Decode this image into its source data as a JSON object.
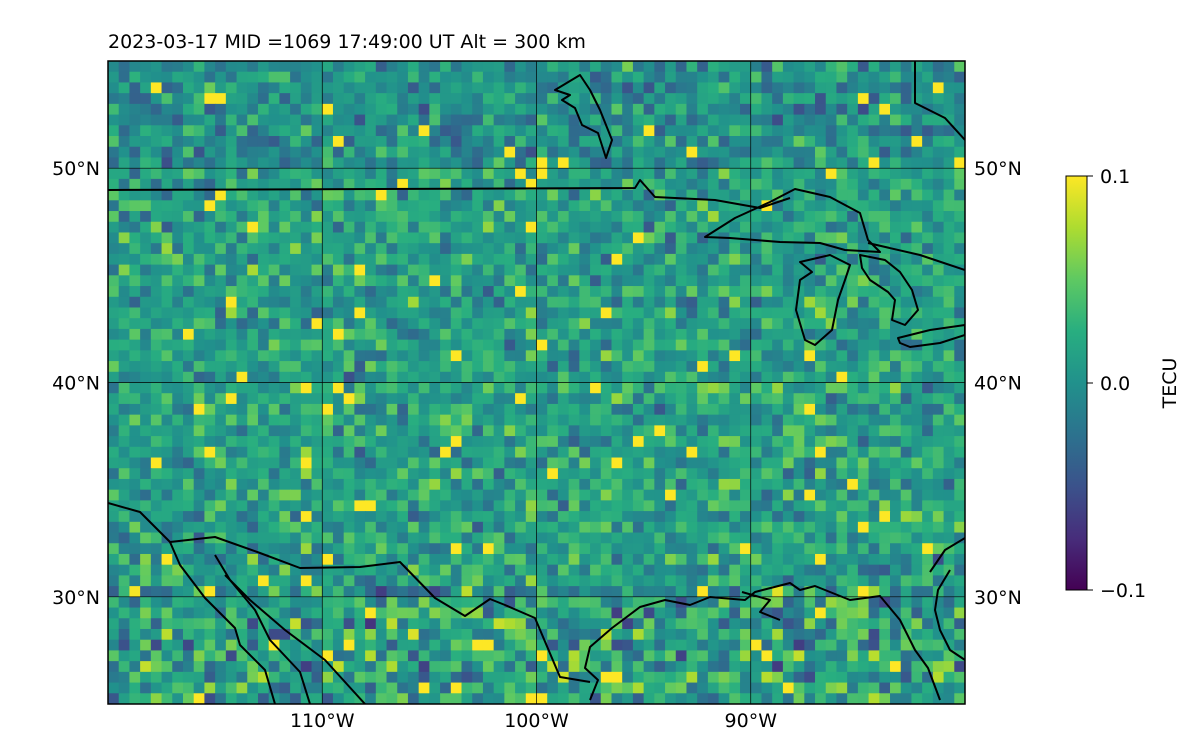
{
  "chart_data": {
    "type": "heatmap",
    "title": "2023-03-17  MID =1069    17:49:00  UT  Alt = 300 km",
    "x_range": [
      -120,
      -80
    ],
    "y_range": [
      25,
      55
    ],
    "x_ticks": [
      -110,
      -100,
      -90
    ],
    "x_tick_labels": [
      "110°W",
      "100°W",
      "90°W"
    ],
    "y_ticks": [
      30,
      40,
      50
    ],
    "y_tick_labels": [
      "30°N",
      "40°N",
      "50°N"
    ],
    "grid": true,
    "colormap": "viridis",
    "colorbar": {
      "label": "TECU",
      "min": -0.1,
      "max": 0.1,
      "ticks": [
        0.1,
        0.0,
        -0.1
      ],
      "tick_labels": [
        "0.1",
        "0.0",
        "−0.1"
      ]
    },
    "grid_resolution_deg": 0.5,
    "value_description": "differential TEC anomaly mostly within ±0.04 TECU, clipped at ±0.1",
    "coastline_color": "#000000"
  }
}
